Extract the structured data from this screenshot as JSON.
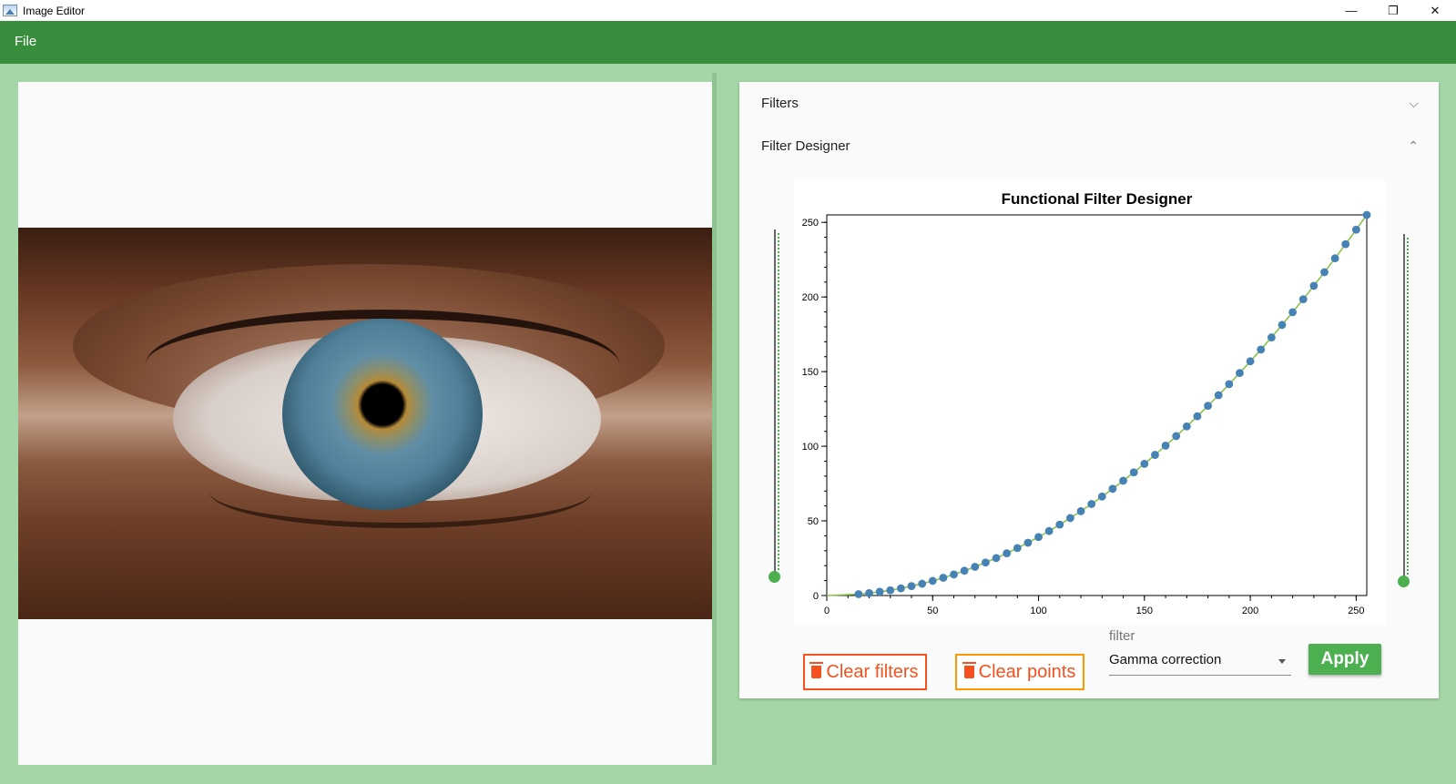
{
  "window": {
    "title": "Image Editor",
    "controls": {
      "minimize": "—",
      "restore": "❐",
      "close": "✕"
    }
  },
  "menu": {
    "file_label": "File"
  },
  "image": {
    "description_icon": "eye-photo"
  },
  "panel": {
    "filters_label": "Filters",
    "designer_label": "Filter Designer"
  },
  "chart_data": {
    "type": "line",
    "title": "Functional Filter Designer",
    "xlabel": "",
    "ylabel": "",
    "xlim": [
      0,
      255
    ],
    "ylim": [
      0,
      255
    ],
    "x_ticks": [
      0,
      50,
      100,
      150,
      200,
      250
    ],
    "y_ticks": [
      0,
      50,
      100,
      150,
      200,
      250
    ],
    "grid": false,
    "gamma": 2,
    "series": [
      {
        "line_color": "#8bc34a",
        "point_color": "#4682b4",
        "x": [
          0,
          15,
          20,
          25,
          30,
          35,
          40,
          45,
          50,
          55,
          60,
          65,
          70,
          75,
          80,
          85,
          90,
          95,
          100,
          105,
          110,
          115,
          120,
          125,
          130,
          135,
          140,
          145,
          150,
          155,
          160,
          165,
          170,
          175,
          180,
          185,
          190,
          195,
          200,
          205,
          210,
          215,
          220,
          225,
          230,
          235,
          240,
          245,
          250,
          255
        ],
        "values": [
          0,
          0.9,
          1.6,
          2.5,
          3.5,
          4.8,
          6.3,
          7.9,
          9.8,
          11.9,
          14.1,
          16.6,
          19.2,
          22.1,
          25.1,
          28.3,
          31.8,
          35.4,
          39.2,
          43.2,
          47.5,
          51.9,
          56.5,
          61.3,
          66.3,
          71.5,
          76.9,
          82.5,
          88.2,
          94.2,
          100.4,
          106.8,
          113.3,
          120.1,
          127.1,
          134.2,
          141.6,
          149.1,
          156.9,
          164.8,
          172.9,
          181.3,
          189.8,
          198.5,
          207.5,
          216.6,
          225.9,
          235.4,
          245.1,
          255
        ]
      }
    ]
  },
  "sliders": {
    "left_value": 0,
    "right_value": 0
  },
  "buttons": {
    "clear_filters": "Clear filters",
    "clear_points": "Clear points",
    "apply": "Apply"
  },
  "filter_select": {
    "label": "filter",
    "value": "Gamma correction"
  },
  "colors": {
    "menubar": "#388e3c",
    "background": "#a5d6a7",
    "accent": "#4caf50",
    "danger": "#f4511e",
    "warning_border": "#ff9800"
  }
}
